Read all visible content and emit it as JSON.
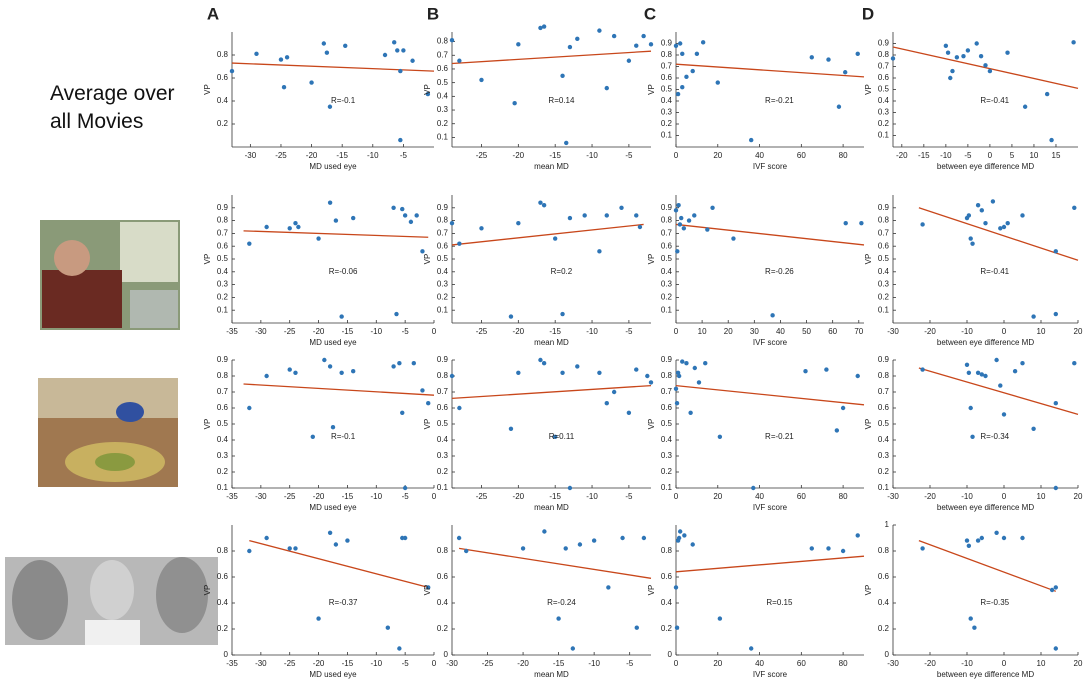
{
  "caption": "Average over all Movies",
  "panels": [
    "A",
    "B",
    "C",
    "D"
  ],
  "chart_data": [
    {
      "type": "scatter",
      "x_label": "MD used eye",
      "y_label": "VP",
      "annotation": "R=-0.1",
      "color": "#2e75b6",
      "trend_color": "#c8471b",
      "xlim": [
        -33,
        0
      ],
      "ylim": [
        0,
        1
      ],
      "xticks": [
        -30,
        -25,
        -20,
        -15,
        -10,
        -5
      ],
      "yticks": [
        0.2,
        0.4,
        0.6,
        0.8
      ],
      "x": [
        -33,
        -29,
        -25,
        -24.5,
        -24,
        -20,
        -18,
        -17.5,
        -17,
        -14.5,
        -8,
        -6.5,
        -6,
        -5.5,
        -5.5,
        -5,
        -3.5,
        -1
      ],
      "y": [
        0.66,
        0.81,
        0.76,
        0.52,
        0.78,
        0.56,
        0.9,
        0.82,
        0.35,
        0.88,
        0.8,
        0.91,
        0.84,
        0.06,
        0.66,
        0.84,
        0.75,
        0.46
      ],
      "trend": {
        "x": [
          -33,
          0
        ],
        "y": [
          0.73,
          0.66
        ]
      }
    },
    {
      "type": "scatter",
      "x_label": "mean MD",
      "y_label": "VP",
      "annotation": "R=0.14",
      "color": "#2e75b6",
      "trend_color": "#c8471b",
      "xlim": [
        -29,
        -2
      ],
      "ylim": [
        0.03,
        0.87
      ],
      "xticks": [
        -25,
        -20,
        -15,
        -10,
        -5
      ],
      "yticks": [
        0.1,
        0.2,
        0.3,
        0.4,
        0.5,
        0.6,
        0.7,
        0.8
      ],
      "x": [
        -29,
        -28,
        -25,
        -20.5,
        -20,
        -17,
        -16.5,
        -14,
        -13.5,
        -13,
        -12,
        -9,
        -8,
        -7,
        -5,
        -4,
        -3,
        -2
      ],
      "y": [
        0.81,
        0.66,
        0.52,
        0.35,
        0.78,
        0.9,
        0.91,
        0.55,
        0.06,
        0.76,
        0.82,
        0.88,
        0.46,
        0.84,
        0.66,
        0.77,
        0.84,
        0.78
      ],
      "trend": {
        "x": [
          -29,
          -2
        ],
        "y": [
          0.64,
          0.73
        ]
      }
    },
    {
      "type": "scatter",
      "x_label": "IVF score",
      "y_label": "VP",
      "annotation": "R=-0.21",
      "color": "#2e75b6",
      "trend_color": "#c8471b",
      "xlim": [
        0,
        90
      ],
      "ylim": [
        0,
        1
      ],
      "xticks": [
        0,
        20,
        40,
        60,
        80
      ],
      "yticks": [
        0.1,
        0.2,
        0.3,
        0.4,
        0.5,
        0.6,
        0.7,
        0.8,
        0.9
      ],
      "x": [
        0,
        1,
        2,
        3,
        3,
        5,
        8,
        10,
        13,
        20,
        36,
        65,
        73,
        78,
        81,
        87
      ],
      "y": [
        0.88,
        0.46,
        0.9,
        0.52,
        0.81,
        0.61,
        0.66,
        0.81,
        0.91,
        0.56,
        0.06,
        0.78,
        0.76,
        0.35,
        0.65,
        0.81
      ],
      "trend": {
        "x": [
          0,
          90
        ],
        "y": [
          0.72,
          0.61
        ]
      }
    },
    {
      "type": "scatter",
      "x_label": "between eye difference MD",
      "y_label": "VP",
      "annotation": "R=-0.41",
      "color": "#2e75b6",
      "trend_color": "#c8471b",
      "xlim": [
        -22,
        20
      ],
      "ylim": [
        0,
        1
      ],
      "xticks": [
        -20,
        -15,
        -10,
        -5,
        0,
        5,
        10,
        15
      ],
      "yticks": [
        0.1,
        0.2,
        0.3,
        0.4,
        0.5,
        0.6,
        0.7,
        0.8,
        0.9
      ],
      "x": [
        -22,
        -10,
        -9.5,
        -9,
        -8.5,
        -7.5,
        -6,
        -5,
        -3,
        -2,
        -1,
        0,
        4,
        8,
        13,
        14,
        19
      ],
      "y": [
        0.77,
        0.88,
        0.82,
        0.6,
        0.66,
        0.78,
        0.79,
        0.84,
        0.9,
        0.79,
        0.71,
        0.66,
        0.82,
        0.35,
        0.46,
        0.06,
        0.91
      ],
      "trend": {
        "x": [
          -22,
          20
        ],
        "y": [
          0.87,
          0.51
        ]
      }
    },
    {
      "type": "scatter",
      "x_label": "MD used eye",
      "y_label": "VP",
      "annotation": "R=-0.06",
      "color": "#2e75b6",
      "trend_color": "#c8471b",
      "xlim": [
        -35,
        0
      ],
      "ylim": [
        0,
        1
      ],
      "xticks": [
        -35,
        -30,
        -25,
        -20,
        -15,
        -10,
        -5,
        0
      ],
      "yticks": [
        0.1,
        0.2,
        0.3,
        0.4,
        0.5,
        0.6,
        0.7,
        0.8,
        0.9
      ],
      "x": [
        -32,
        -29,
        -25,
        -24,
        -23.5,
        -20,
        -18,
        -17,
        -16,
        -14,
        -7,
        -6.5,
        -5.5,
        -5,
        -4,
        -2,
        -3
      ],
      "y": [
        0.62,
        0.75,
        0.74,
        0.78,
        0.75,
        0.66,
        0.94,
        0.8,
        0.05,
        0.82,
        0.9,
        0.07,
        0.89,
        0.84,
        0.79,
        0.56,
        0.84
      ],
      "trend": {
        "x": [
          -33,
          -1
        ],
        "y": [
          0.72,
          0.67
        ]
      }
    },
    {
      "type": "scatter",
      "x_label": "mean MD",
      "y_label": "VP",
      "annotation": "R=0.2",
      "color": "#2e75b6",
      "trend_color": "#c8471b",
      "xlim": [
        -29,
        -2
      ],
      "ylim": [
        0,
        1
      ],
      "xticks": [
        -25,
        -20,
        -15,
        -10,
        -5
      ],
      "yticks": [
        0.1,
        0.2,
        0.3,
        0.4,
        0.5,
        0.6,
        0.7,
        0.8,
        0.9
      ],
      "x": [
        -29,
        -28,
        -25,
        -21,
        -20,
        -17,
        -16.5,
        -15,
        -14,
        -13,
        -11,
        -9,
        -8,
        -6,
        -4,
        -3.5
      ],
      "y": [
        0.78,
        0.62,
        0.74,
        0.05,
        0.78,
        0.94,
        0.92,
        0.66,
        0.07,
        0.82,
        0.84,
        0.56,
        0.84,
        0.9,
        0.84,
        0.75
      ],
      "trend": {
        "x": [
          -29,
          -3
        ],
        "y": [
          0.61,
          0.77
        ]
      }
    },
    {
      "type": "scatter",
      "x_label": "IVF score",
      "y_label": "VP",
      "annotation": "R=-0.26",
      "color": "#2e75b6",
      "trend_color": "#c8471b",
      "xlim": [
        0,
        72
      ],
      "ylim": [
        0,
        1
      ],
      "xticks": [
        0,
        10,
        20,
        30,
        40,
        50,
        60,
        70
      ],
      "yticks": [
        0.1,
        0.2,
        0.3,
        0.4,
        0.5,
        0.6,
        0.7,
        0.8,
        0.9
      ],
      "x": [
        0,
        0.5,
        1,
        1.5,
        2,
        3,
        5,
        7,
        12,
        14,
        22,
        37,
        65,
        71
      ],
      "y": [
        0.88,
        0.56,
        0.92,
        0.77,
        0.82,
        0.74,
        0.8,
        0.84,
        0.73,
        0.9,
        0.66,
        0.06,
        0.78,
        0.78
      ],
      "trend": {
        "x": [
          0,
          72
        ],
        "y": [
          0.77,
          0.61
        ]
      }
    },
    {
      "type": "scatter",
      "x_label": "between eye difference MD",
      "y_label": "VP",
      "annotation": "R=-0.41",
      "color": "#2e75b6",
      "trend_color": "#c8471b",
      "xlim": [
        -30,
        20
      ],
      "ylim": [
        0,
        1
      ],
      "xticks": [
        -30,
        -20,
        -10,
        0,
        10,
        20
      ],
      "yticks": [
        0.1,
        0.2,
        0.3,
        0.4,
        0.5,
        0.6,
        0.7,
        0.8,
        0.9
      ],
      "x": [
        -22,
        -10,
        -9.5,
        -9,
        -8.5,
        -7,
        -6,
        -5,
        -3,
        -1,
        0,
        1,
        5,
        8,
        14,
        14,
        19
      ],
      "y": [
        0.77,
        0.82,
        0.84,
        0.66,
        0.62,
        0.92,
        0.88,
        0.78,
        0.95,
        0.74,
        0.75,
        0.78,
        0.84,
        0.05,
        0.56,
        0.07,
        0.9
      ],
      "trend": {
        "x": [
          -23,
          20
        ],
        "y": [
          0.9,
          0.49
        ]
      }
    },
    {
      "type": "scatter",
      "x_label": "MD used eye",
      "y_label": "VP",
      "annotation": "R=-0.1",
      "color": "#2e75b6",
      "trend_color": "#c8471b",
      "xlim": [
        -35,
        0
      ],
      "ylim": [
        0.1,
        0.9
      ],
      "xticks": [
        -35,
        -30,
        -25,
        -20,
        -15,
        -10,
        -5,
        0
      ],
      "yticks": [
        0.1,
        0.2,
        0.3,
        0.4,
        0.5,
        0.6,
        0.7,
        0.8,
        0.9
      ],
      "x": [
        -32,
        -29,
        -25,
        -24,
        -21,
        -19,
        -18,
        -17.5,
        -16,
        -14,
        -7,
        -6,
        -5.5,
        -5,
        -3.5,
        -2,
        -1
      ],
      "y": [
        0.6,
        0.8,
        0.84,
        0.82,
        0.42,
        0.9,
        0.86,
        0.48,
        0.82,
        0.83,
        0.86,
        0.88,
        0.57,
        0.1,
        0.88,
        0.71,
        0.63
      ],
      "trend": {
        "x": [
          -33,
          0
        ],
        "y": [
          0.75,
          0.68
        ]
      }
    },
    {
      "type": "scatter",
      "x_label": "mean MD",
      "y_label": "VP",
      "annotation": "R=0.11",
      "color": "#2e75b6",
      "trend_color": "#c8471b",
      "xlim": [
        -29,
        -2
      ],
      "ylim": [
        0.1,
        0.9
      ],
      "xticks": [
        -25,
        -20,
        -15,
        -10,
        -5
      ],
      "yticks": [
        0.1,
        0.2,
        0.3,
        0.4,
        0.5,
        0.6,
        0.7,
        0.8,
        0.9
      ],
      "x": [
        -29,
        -28,
        -21,
        -20,
        -17,
        -16.5,
        -15,
        -14,
        -13,
        -12,
        -9,
        -8,
        -7,
        -5,
        -4,
        -2.5,
        -2
      ],
      "y": [
        0.8,
        0.6,
        0.47,
        0.82,
        0.9,
        0.88,
        0.42,
        0.82,
        0.1,
        0.86,
        0.82,
        0.63,
        0.7,
        0.57,
        0.84,
        0.8,
        0.76
      ],
      "trend": {
        "x": [
          -29,
          -2
        ],
        "y": [
          0.66,
          0.74
        ]
      }
    },
    {
      "type": "scatter",
      "x_label": "IVF score",
      "y_label": "VP",
      "annotation": "R=-0.21",
      "color": "#2e75b6",
      "trend_color": "#c8471b",
      "xlim": [
        0,
        90
      ],
      "ylim": [
        0.1,
        0.9
      ],
      "xticks": [
        0,
        20,
        40,
        60,
        80
      ],
      "yticks": [
        0.1,
        0.2,
        0.3,
        0.4,
        0.5,
        0.6,
        0.7,
        0.8,
        0.9
      ],
      "x": [
        0,
        0.5,
        1,
        1.5,
        3,
        5,
        7,
        9,
        11,
        14,
        21,
        37,
        62,
        72,
        77,
        80,
        87
      ],
      "y": [
        0.72,
        0.63,
        0.82,
        0.8,
        0.89,
        0.88,
        0.57,
        0.85,
        0.76,
        0.88,
        0.42,
        0.1,
        0.83,
        0.84,
        0.46,
        0.6,
        0.8
      ],
      "trend": {
        "x": [
          0,
          90
        ],
        "y": [
          0.74,
          0.62
        ]
      }
    },
    {
      "type": "scatter",
      "x_label": "between eye difference MD",
      "y_label": "VP",
      "annotation": "R=-0.34",
      "color": "#2e75b6",
      "trend_color": "#c8471b",
      "xlim": [
        -30,
        20
      ],
      "ylim": [
        0.1,
        0.9
      ],
      "xticks": [
        -30,
        -20,
        -10,
        0,
        10,
        20
      ],
      "yticks": [
        0.1,
        0.2,
        0.3,
        0.4,
        0.5,
        0.6,
        0.7,
        0.8,
        0.9
      ],
      "x": [
        -22,
        -10,
        -9.5,
        -9,
        -8.5,
        -7,
        -6,
        -5,
        -2,
        -1,
        0,
        3,
        5,
        8,
        14,
        14,
        19
      ],
      "y": [
        0.84,
        0.87,
        0.82,
        0.6,
        0.42,
        0.82,
        0.81,
        0.8,
        0.9,
        0.74,
        0.56,
        0.83,
        0.88,
        0.47,
        0.63,
        0.1,
        0.88
      ],
      "trend": {
        "x": [
          -23,
          20
        ],
        "y": [
          0.85,
          0.56
        ]
      }
    },
    {
      "type": "scatter",
      "x_label": "MD used eye",
      "y_label": "VP",
      "annotation": "R=-0.37",
      "color": "#2e75b6",
      "trend_color": "#c8471b",
      "xlim": [
        -35,
        0
      ],
      "ylim": [
        0,
        1
      ],
      "xticks": [
        -35,
        -30,
        -25,
        -20,
        -15,
        -10,
        -5,
        0
      ],
      "yticks": [
        0,
        0.2,
        0.4,
        0.6,
        0.8
      ],
      "x": [
        -32,
        -29,
        -25,
        -24,
        -20,
        -18,
        -17,
        -15,
        -8,
        -6,
        -5.5,
        -5,
        -1
      ],
      "y": [
        0.8,
        0.9,
        0.82,
        0.82,
        0.28,
        0.94,
        0.85,
        0.88,
        0.21,
        0.05,
        0.9,
        0.9,
        0.52
      ],
      "trend": {
        "x": [
          -32,
          -1
        ],
        "y": [
          0.88,
          0.52
        ]
      }
    },
    {
      "type": "scatter",
      "x_label": "mean MD",
      "y_label": "VP",
      "annotation": "R=-0.24",
      "color": "#2e75b6",
      "trend_color": "#c8471b",
      "xlim": [
        -30,
        -2
      ],
      "ylim": [
        0,
        1
      ],
      "xticks": [
        -30,
        -25,
        -20,
        -15,
        -10,
        -5
      ],
      "yticks": [
        0,
        0.2,
        0.4,
        0.6,
        0.8
      ],
      "x": [
        -29,
        -28,
        -20,
        -17,
        -15,
        -14,
        -13,
        -12,
        -10,
        -8,
        -6,
        -4,
        -3
      ],
      "y": [
        0.9,
        0.8,
        0.82,
        0.95,
        0.28,
        0.82,
        0.05,
        0.85,
        0.88,
        0.52,
        0.9,
        0.21,
        0.9
      ],
      "trend": {
        "x": [
          -29,
          -2
        ],
        "y": [
          0.82,
          0.59
        ]
      }
    },
    {
      "type": "scatter",
      "x_label": "IVF score",
      "y_label": "VP",
      "annotation": "R=0.15",
      "color": "#2e75b6",
      "trend_color": "#c8471b",
      "xlim": [
        0,
        90
      ],
      "ylim": [
        0,
        1
      ],
      "xticks": [
        0,
        20,
        40,
        60,
        80
      ],
      "yticks": [
        0,
        0.2,
        0.4,
        0.6,
        0.8
      ],
      "x": [
        0,
        0.5,
        1,
        1.5,
        2,
        4,
        8,
        21,
        36,
        65,
        73,
        80,
        87
      ],
      "y": [
        0.52,
        0.21,
        0.88,
        0.9,
        0.95,
        0.92,
        0.85,
        0.28,
        0.05,
        0.82,
        0.82,
        0.8,
        0.92
      ],
      "trend": {
        "x": [
          0,
          90
        ],
        "y": [
          0.64,
          0.76
        ]
      }
    },
    {
      "type": "scatter",
      "x_label": "between eye difference MD",
      "y_label": "VP",
      "annotation": "R=-0.35",
      "color": "#2e75b6",
      "trend_color": "#c8471b",
      "xlim": [
        -30,
        20
      ],
      "ylim": [
        0,
        1
      ],
      "xticks": [
        -30,
        -20,
        -10,
        0,
        10,
        20
      ],
      "yticks": [
        0,
        0.2,
        0.4,
        0.6,
        0.8,
        1
      ],
      "x": [
        -22,
        -10,
        -9.5,
        -9,
        -8,
        -7,
        -6,
        -2,
        0,
        5,
        14,
        14,
        13
      ],
      "y": [
        0.82,
        0.88,
        0.84,
        0.28,
        0.21,
        0.88,
        0.9,
        0.94,
        0.9,
        0.9,
        0.52,
        0.05,
        0.5
      ],
      "trend": {
        "x": [
          -23,
          14
        ],
        "y": [
          0.88,
          0.49
        ]
      }
    }
  ]
}
